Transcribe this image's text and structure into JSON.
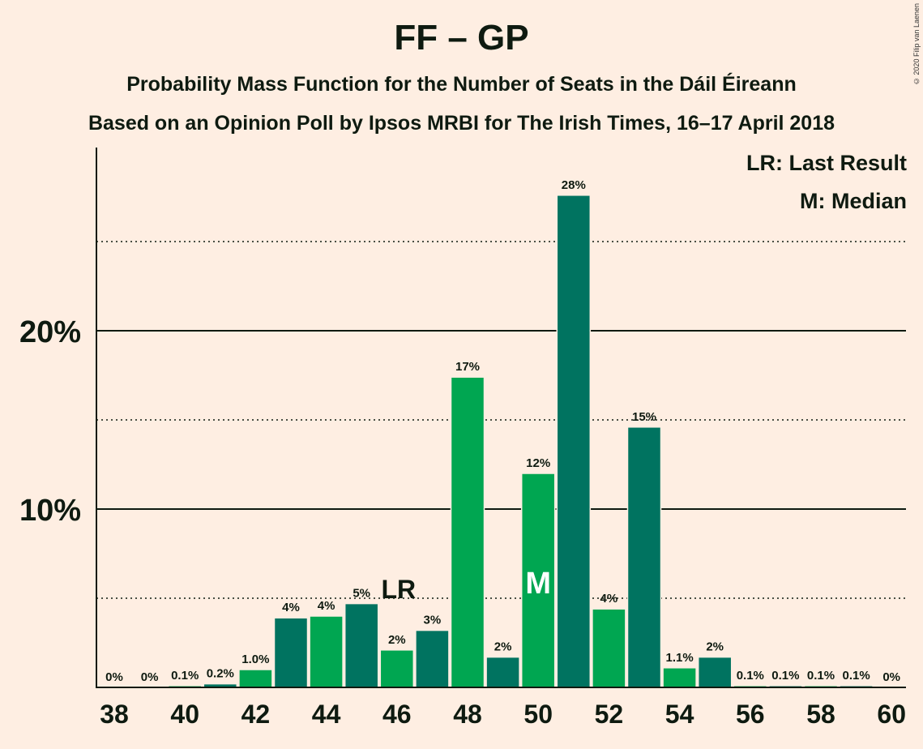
{
  "header": {
    "title": "FF – GP",
    "subtitle1": "Probability Mass Function for the Number of Seats in the Dáil Éireann",
    "subtitle2": "Based on an Opinion Poll by Ipsos MRBI for The Irish Times, 16–17 April 2018"
  },
  "legend": {
    "last_result": "LR: Last Result",
    "median": "M: Median"
  },
  "copyright": "© 2020 Filip van Laenen",
  "chart_data": {
    "type": "bar",
    "x": [
      38,
      39,
      40,
      41,
      42,
      43,
      44,
      45,
      46,
      47,
      48,
      49,
      50,
      51,
      52,
      53,
      54,
      55,
      56,
      57,
      58,
      59,
      60
    ],
    "values": [
      0,
      0,
      0.1,
      0.2,
      1.0,
      3.9,
      4.0,
      4.7,
      2.1,
      3.2,
      17.4,
      1.7,
      12.0,
      27.6,
      4.4,
      14.6,
      1.1,
      1.7,
      0.1,
      0.1,
      0.1,
      0.1,
      0
    ],
    "labels": [
      "0%",
      "0%",
      "0.1%",
      "0.2%",
      "1.0%",
      "4%",
      "4%",
      "5%",
      "2%",
      "3%",
      "17%",
      "2%",
      "12%",
      "28%",
      "4%",
      "15%",
      "1.1%",
      "2%",
      "0.1%",
      "0.1%",
      "0.1%",
      "0.1%",
      "0%"
    ],
    "xticks": [
      "38",
      "40",
      "42",
      "44",
      "46",
      "48",
      "50",
      "52",
      "54",
      "56",
      "58",
      "60"
    ],
    "yticks": [
      "10%",
      "20%"
    ],
    "ylim": [
      0,
      30
    ],
    "gridlines_solid": [
      10,
      20
    ],
    "gridlines_dotted": [
      5,
      15,
      25
    ],
    "last_result": {
      "x": 46,
      "label": "LR"
    },
    "median": {
      "x": 50,
      "label": "M"
    },
    "colors": {
      "light": "#00a651",
      "dark": "#007360",
      "axis": "#0e1a10",
      "background": "#feeee2"
    }
  }
}
